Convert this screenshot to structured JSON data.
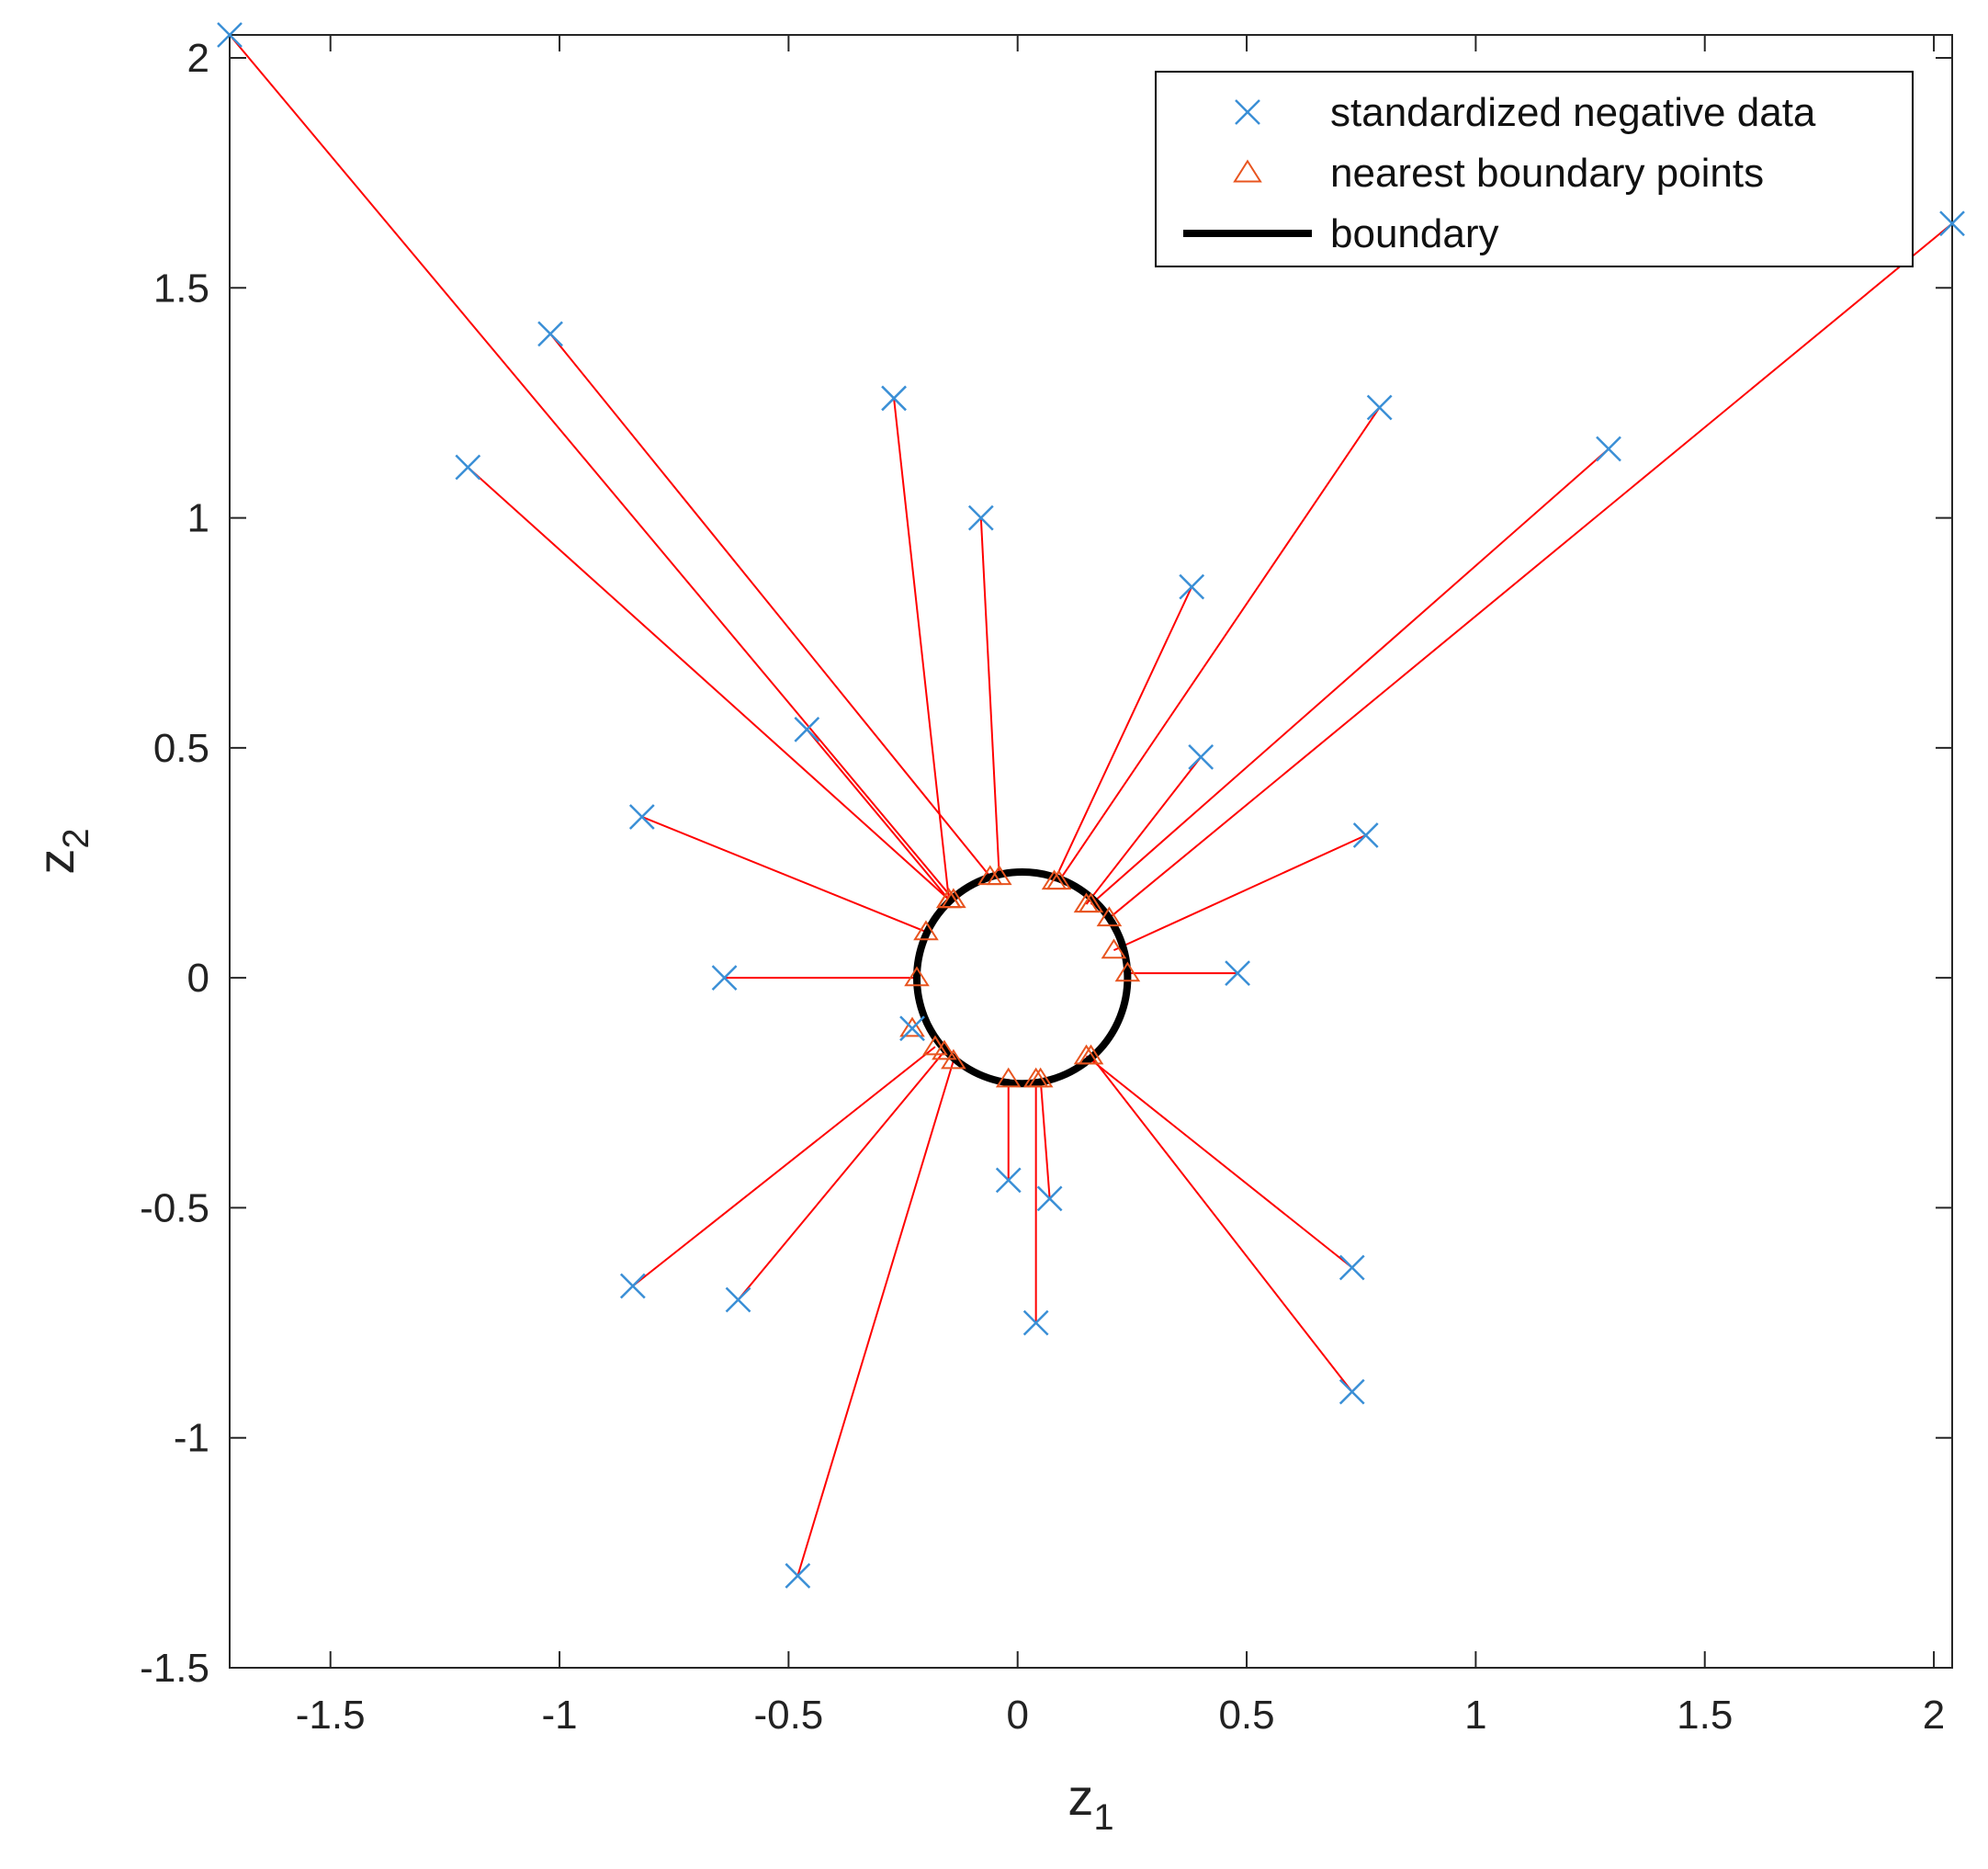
{
  "colors": {
    "data_marker": "#3a8fd6",
    "boundary_point": "#e8541f",
    "connector": "#ff0000",
    "boundary": "#000000",
    "axis": "#262626"
  },
  "chart_data": {
    "type": "scatter",
    "xlabel": "z",
    "xlabel_sub": "1",
    "ylabel": "z",
    "ylabel_sub": "2",
    "xlim": [
      -1.72,
      2.04
    ],
    "ylim": [
      -1.5,
      2.05
    ],
    "x_ticks": [
      -1.5,
      -1,
      -0.5,
      0,
      0.5,
      1,
      1.5,
      2
    ],
    "x_tick_labels": [
      "-1.5",
      "-1",
      "-0.5",
      "0",
      "0.5",
      "1",
      "1.5",
      "2"
    ],
    "y_ticks": [
      -1.5,
      -1,
      -0.5,
      0,
      0.5,
      1,
      1.5,
      2
    ],
    "y_tick_labels": [
      "-1.5",
      "-1",
      "-0.5",
      "0",
      "0.5",
      "1",
      "1.5",
      "2"
    ],
    "grid": false,
    "legend_position": "top-right",
    "legend": [
      {
        "label": "standardized negative data",
        "marker": "x",
        "color": "#3a8fd6"
      },
      {
        "label": "nearest boundary points",
        "marker": "triangle",
        "color": "#e8541f"
      },
      {
        "label": "boundary",
        "marker": "line",
        "color": "#000000"
      }
    ],
    "boundary": {
      "type": "circle",
      "center": [
        0.01,
        0.0
      ],
      "radius": 0.23
    },
    "series": [
      {
        "name": "standardized negative data",
        "points": [
          [
            -1.72,
            2.05
          ],
          [
            -1.2,
            1.11
          ],
          [
            -1.02,
            1.4
          ],
          [
            -0.27,
            1.26
          ],
          [
            -0.08,
            1.0
          ],
          [
            0.38,
            0.85
          ],
          [
            0.4,
            0.48
          ],
          [
            0.79,
            1.24
          ],
          [
            1.29,
            1.15
          ],
          [
            2.04,
            1.64
          ],
          [
            -0.46,
            0.54
          ],
          [
            -0.82,
            0.35
          ],
          [
            -0.64,
            0.0
          ],
          [
            0.48,
            0.01
          ],
          [
            0.76,
            0.31
          ],
          [
            -0.23,
            -0.11
          ],
          [
            -0.02,
            -0.44
          ],
          [
            0.07,
            -0.48
          ],
          [
            0.04,
            -0.75
          ],
          [
            0.73,
            -0.63
          ],
          [
            0.73,
            -0.9
          ],
          [
            -0.84,
            -0.67
          ],
          [
            -0.61,
            -0.7
          ],
          [
            -0.48,
            -1.3
          ]
        ]
      },
      {
        "name": "nearest boundary points",
        "points": [
          [
            -0.14,
            0.17
          ],
          [
            -0.15,
            0.17
          ],
          [
            -0.06,
            0.22
          ],
          [
            -0.15,
            0.17
          ],
          [
            -0.04,
            0.22
          ],
          [
            0.08,
            0.21
          ],
          [
            0.15,
            0.16
          ],
          [
            0.09,
            0.21
          ],
          [
            0.16,
            0.16
          ],
          [
            0.2,
            0.13
          ],
          [
            -0.15,
            0.17
          ],
          [
            -0.2,
            0.1
          ],
          [
            -0.22,
            0.0
          ],
          [
            0.24,
            0.01
          ],
          [
            0.21,
            0.06
          ],
          [
            -0.23,
            -0.11
          ],
          [
            -0.02,
            -0.22
          ],
          [
            0.05,
            -0.22
          ],
          [
            0.04,
            -0.22
          ],
          [
            0.15,
            -0.17
          ],
          [
            0.16,
            -0.17
          ],
          [
            -0.18,
            -0.15
          ],
          [
            -0.16,
            -0.16
          ],
          [
            -0.14,
            -0.18
          ]
        ]
      }
    ]
  }
}
